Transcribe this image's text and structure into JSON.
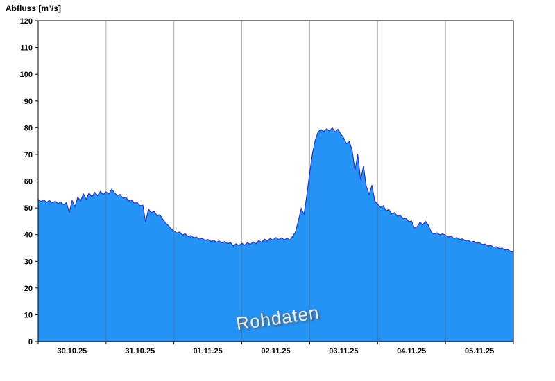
{
  "chart_data": {
    "type": "area",
    "title": "Abfluss [m³/s]",
    "watermark": "Rohdaten",
    "ylabel": "Abfluss [m³/s]",
    "ylim": [
      0,
      120
    ],
    "ytick_step": 10,
    "grid": "vertical-day-lines-only",
    "legend": "none",
    "x_range": [
      "30.10.25 00:00",
      "06.11.25 00:00"
    ],
    "x_step_hours": 1,
    "hours_per_day": 24,
    "day_labels": [
      "30.10.25",
      "31.10.25",
      "01.11.25",
      "02.11.25",
      "03.11.25",
      "04.11.25",
      "05.11.25"
    ],
    "colors": {
      "fill": "#2593f5",
      "line": "#2434c8",
      "grid": "rgba(85,95,125,0.5)",
      "axis": "#000000",
      "watermark_text": "#ffffff"
    },
    "values": [
      53.2,
      52.4,
      53.0,
      52.1,
      52.8,
      51.9,
      52.5,
      51.6,
      52.2,
      51.2,
      52.0,
      48.2,
      52.8,
      50.4,
      54.0,
      52.6,
      55.2,
      53.3,
      55.6,
      54.1,
      55.8,
      54.6,
      56.2,
      55.0,
      56.0,
      55.2,
      57.0,
      55.6,
      54.6,
      55.0,
      53.6,
      54.0,
      52.6,
      53.0,
      51.7,
      52.0,
      50.8,
      51.0,
      44.6,
      49.6,
      48.2,
      48.8,
      47.0,
      47.5,
      45.8,
      44.4,
      43.4,
      42.2,
      41.4,
      40.6,
      41.0,
      39.9,
      40.3,
      39.3,
      39.7,
      38.8,
      39.1,
      38.3,
      38.6,
      37.9,
      38.2,
      37.5,
      37.9,
      37.2,
      37.6,
      36.9,
      37.4,
      36.6,
      37.1,
      35.8,
      36.6,
      35.9,
      36.8,
      36.1,
      37.0,
      36.3,
      37.3,
      36.6,
      37.8,
      37.1,
      38.3,
      37.6,
      38.6,
      38.0,
      38.9,
      38.2,
      38.8,
      38.1,
      38.6,
      38.0,
      39.4,
      41.0,
      45.2,
      49.8,
      47.6,
      55.0,
      63.0,
      70.5,
      75.5,
      78.5,
      79.3,
      78.6,
      79.6,
      78.8,
      79.9,
      78.4,
      79.4,
      77.6,
      76.2,
      74.0,
      74.8,
      71.5,
      64.0,
      70.0,
      60.5,
      65.5,
      58.0,
      55.0,
      58.5,
      52.5,
      51.5,
      50.2,
      50.8,
      48.9,
      49.4,
      47.8,
      48.2,
      46.9,
      47.3,
      45.9,
      46.2,
      44.9,
      45.1,
      42.4,
      43.0,
      44.6,
      43.8,
      44.9,
      43.4,
      40.8,
      40.3,
      40.7,
      39.9,
      40.3,
      39.8,
      39.1,
      39.4,
      38.6,
      38.9,
      38.2,
      38.4,
      37.7,
      37.9,
      37.2,
      37.5,
      36.8,
      37.0,
      36.3,
      36.5,
      35.8,
      36.0,
      35.3,
      35.5,
      34.8,
      35.0,
      34.3,
      34.5,
      33.7,
      33.4
    ]
  }
}
